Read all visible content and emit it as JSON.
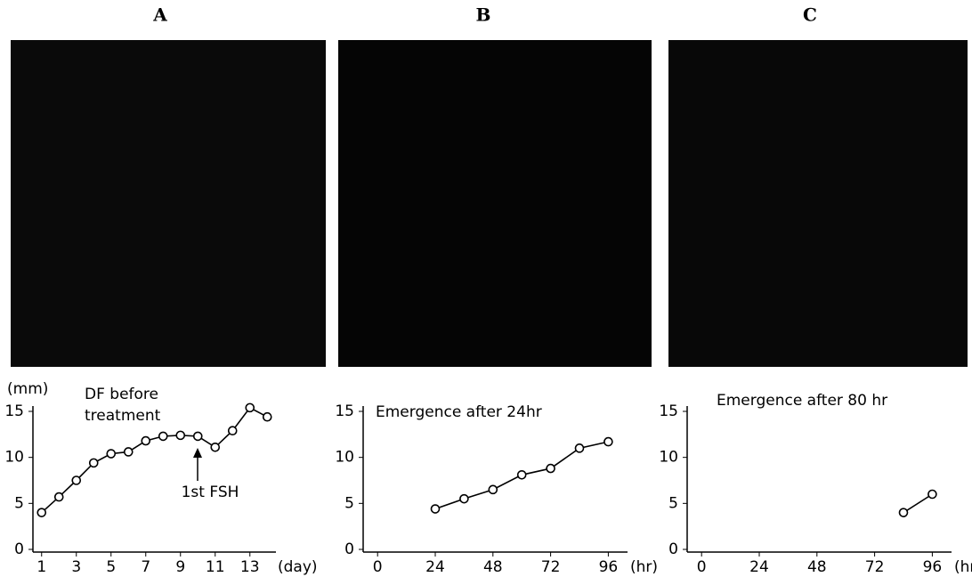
{
  "chart_data": [
    {
      "type": "line",
      "panel": "A",
      "y_unit": "(mm)",
      "x_unit": "(day)",
      "annotations": [
        {
          "lines": [
            "DF before",
            "treatment"
          ]
        },
        {
          "lines": [
            "1st FSH"
          ]
        }
      ],
      "x": [
        1,
        2,
        3,
        4,
        5,
        6,
        7,
        8,
        9,
        10,
        11,
        12,
        13,
        14
      ],
      "values": [
        4.0,
        5.7,
        7.5,
        9.4,
        10.4,
        10.6,
        11.8,
        12.3,
        12.4,
        12.3,
        11.1,
        12.9,
        15.4,
        14.4
      ],
      "color": "#000000",
      "xlim": [
        0.5,
        14.5
      ],
      "xticks": [
        1,
        3,
        5,
        7,
        9,
        11,
        13
      ],
      "ylim": [
        0,
        15
      ],
      "yticks": [
        0,
        5,
        10,
        15
      ]
    },
    {
      "type": "line",
      "panel": "B",
      "x_unit": "(hr)",
      "annotations": [
        {
          "lines": [
            "Emergence after 24hr"
          ]
        }
      ],
      "x": [
        24,
        36,
        48,
        60,
        72,
        84,
        96
      ],
      "values": [
        4.4,
        5.5,
        6.5,
        8.1,
        8.8,
        11.0,
        11.7
      ],
      "color": "#000000",
      "xlim": [
        -6,
        104
      ],
      "xticks": [
        0,
        24,
        48,
        72,
        96
      ],
      "ylim": [
        0,
        15
      ],
      "yticks": [
        0,
        5,
        10,
        15
      ]
    },
    {
      "type": "line",
      "panel": "C",
      "x_unit": "(hr)",
      "annotations": [
        {
          "lines": [
            "Emergence after 80 hr"
          ]
        }
      ],
      "x": [
        84,
        96
      ],
      "values": [
        4.0,
        6.0
      ],
      "color": "#000000",
      "xlim": [
        -6,
        104
      ],
      "xticks": [
        0,
        24,
        48,
        72,
        96
      ],
      "ylim": [
        0,
        15
      ],
      "yticks": [
        0,
        5,
        10,
        15
      ]
    }
  ]
}
